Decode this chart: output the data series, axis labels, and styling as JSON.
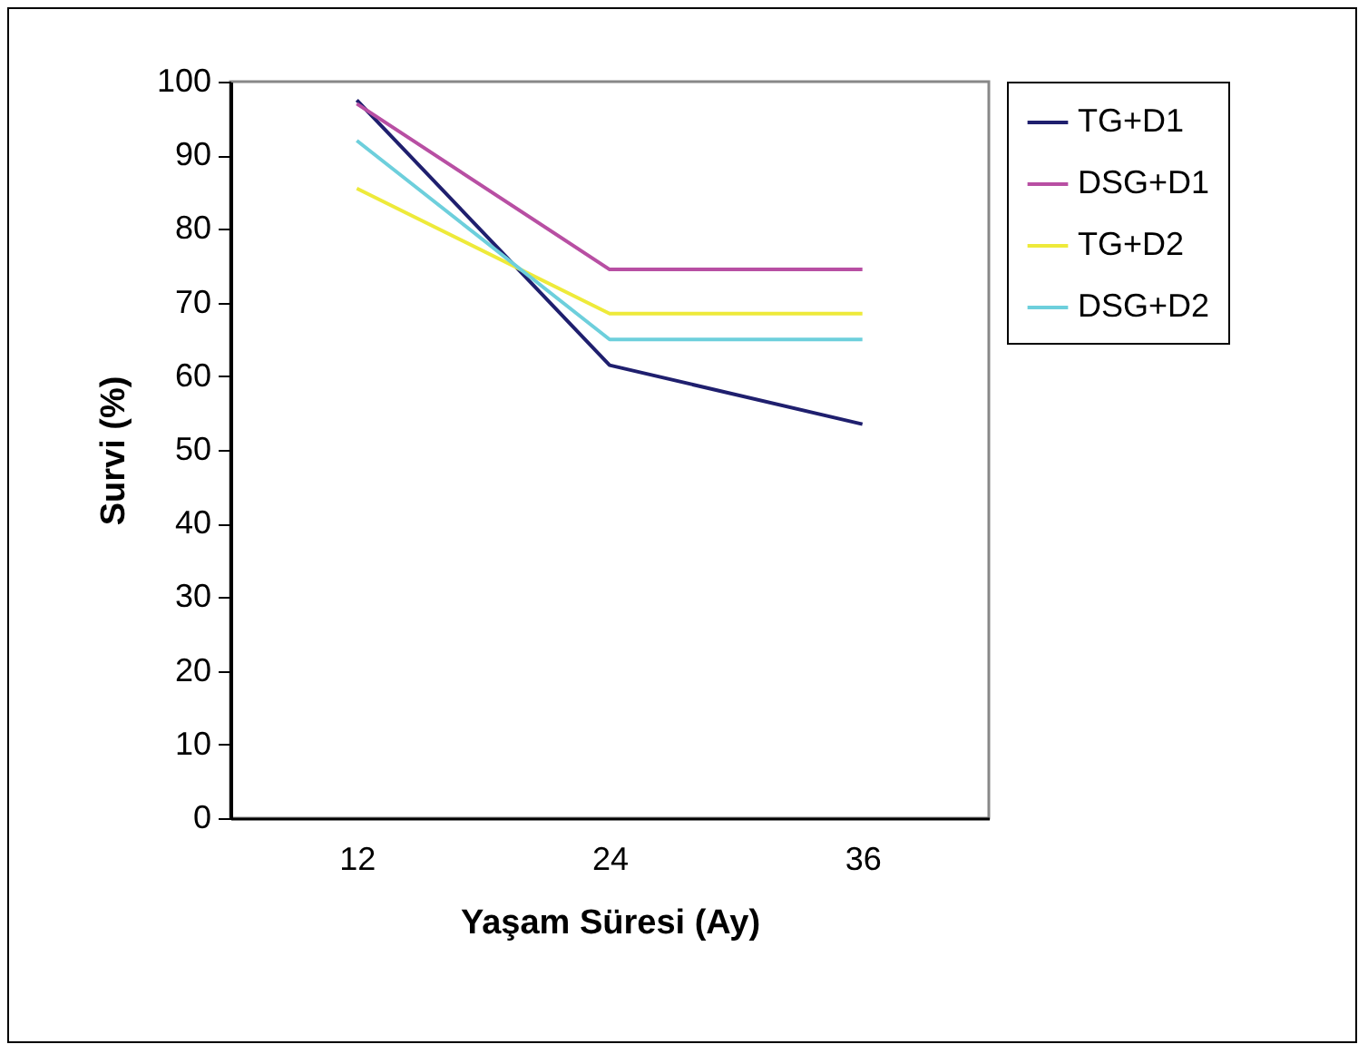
{
  "chart_data": {
    "type": "line",
    "xlabel": "Yaşam Süresi (Ay)",
    "ylabel": "Survi (%)",
    "categories": [
      "12",
      "24",
      "36"
    ],
    "series": [
      {
        "name": "TG+D1",
        "color": "#1f1f6e",
        "values": [
          97.5,
          61.5,
          53.5
        ]
      },
      {
        "name": "DSG+D1",
        "color": "#b84fa3",
        "values": [
          97,
          74.5,
          74.5
        ]
      },
      {
        "name": "TG+D2",
        "color": "#eeea3a",
        "values": [
          85.5,
          68.5,
          68.5
        ]
      },
      {
        "name": "DSG+D2",
        "color": "#6dcfdc",
        "values": [
          92,
          65,
          65
        ]
      }
    ],
    "ylim": [
      0,
      100
    ],
    "yticks": [
      0,
      10,
      20,
      30,
      40,
      50,
      60,
      70,
      80,
      90,
      100
    ],
    "grid": false,
    "legend": "right"
  }
}
